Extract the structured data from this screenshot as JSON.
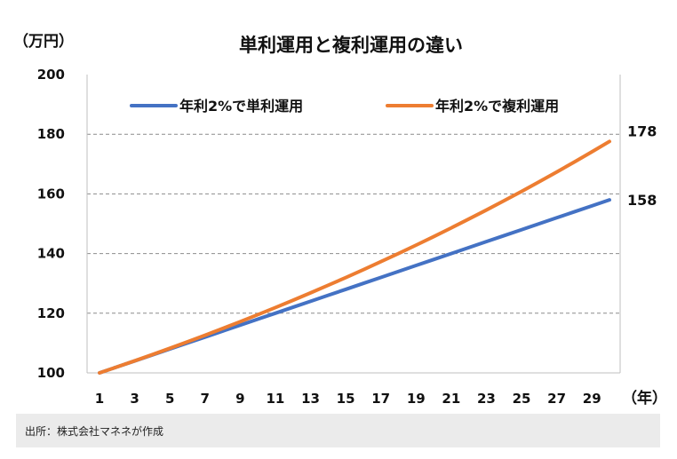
{
  "chart_data": {
    "type": "line",
    "title": "単利運用と複利運用の違い",
    "ylabel": "（万円）",
    "xlabel": "（年）",
    "ylim": [
      100,
      200
    ],
    "yticks": [
      100,
      120,
      140,
      160,
      180,
      200
    ],
    "x": [
      1,
      2,
      3,
      4,
      5,
      6,
      7,
      8,
      9,
      10,
      11,
      12,
      13,
      14,
      15,
      16,
      17,
      18,
      19,
      20,
      21,
      22,
      23,
      24,
      25,
      26,
      27,
      28,
      29,
      30
    ],
    "xticks": [
      1,
      3,
      5,
      7,
      9,
      11,
      13,
      15,
      17,
      19,
      21,
      23,
      25,
      27,
      29
    ],
    "grid": "horizontal dashed",
    "legend_position": "top",
    "series": [
      {
        "name": "年利2%で単利運用",
        "color": "#4472C4",
        "end_label": "158",
        "values": [
          100,
          102,
          104,
          106,
          108,
          110,
          112,
          114,
          116,
          118,
          120,
          122,
          124,
          126,
          128,
          130,
          132,
          134,
          136,
          138,
          140,
          142,
          144,
          146,
          148,
          150,
          152,
          154,
          156,
          158
        ]
      },
      {
        "name": "年利2%で複利運用",
        "color": "#ED7D31",
        "end_label": "178",
        "values": [
          100,
          102,
          104.04,
          106.12,
          108.24,
          110.41,
          112.62,
          114.87,
          117.17,
          119.51,
          121.9,
          124.34,
          126.82,
          129.36,
          131.95,
          134.59,
          137.28,
          140.02,
          142.82,
          145.68,
          148.59,
          151.57,
          154.6,
          157.69,
          160.84,
          164.06,
          167.34,
          170.69,
          174.1,
          177.58
        ]
      }
    ]
  },
  "source": "出所：株式会社マネネが作成"
}
